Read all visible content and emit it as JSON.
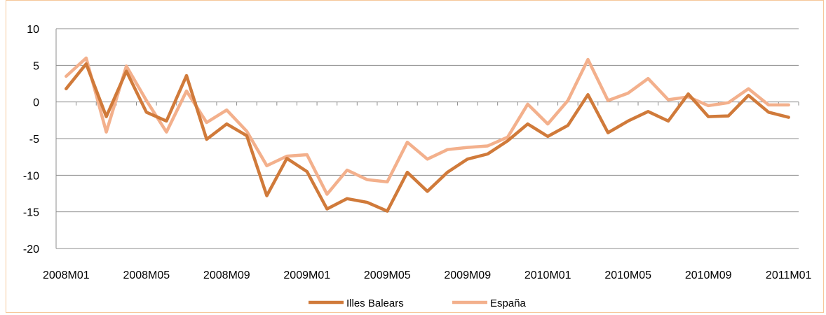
{
  "chart_data": {
    "type": "line",
    "title": "",
    "xlabel": "",
    "ylabel": "",
    "ylim": [
      -20,
      10
    ],
    "yticks": [
      10,
      5,
      0,
      -5,
      -10,
      -15,
      -20
    ],
    "x_tick_labels": [
      "2008M01",
      "2008M05",
      "2008M09",
      "2009M01",
      "2009M05",
      "2009M09",
      "2010M01",
      "2010M05",
      "2010M09",
      "2011M01"
    ],
    "x": [
      "2008M01",
      "2008M02",
      "2008M03",
      "2008M04",
      "2008M05",
      "2008M06",
      "2008M07",
      "2008M08",
      "2008M09",
      "2008M10",
      "2008M11",
      "2008M12",
      "2009M01",
      "2009M02",
      "2009M03",
      "2009M04",
      "2009M05",
      "2009M06",
      "2009M07",
      "2009M08",
      "2009M09",
      "2009M10",
      "2009M11",
      "2009M12",
      "2010M01",
      "2010M02",
      "2010M03",
      "2010M04",
      "2010M05",
      "2010M06",
      "2010M07",
      "2010M08",
      "2010M09",
      "2010M10",
      "2010M11",
      "2010M12",
      "2011M01"
    ],
    "grid": "horizontal",
    "legend_position": "bottom",
    "series": [
      {
        "name": "Illes Balears",
        "color": "#d07a3a",
        "values": [
          1.8,
          5.2,
          -2.0,
          4.2,
          -1.4,
          -2.6,
          3.6,
          -5.1,
          -3.0,
          -4.6,
          -12.8,
          -7.7,
          -9.5,
          -14.6,
          -13.2,
          -13.7,
          -14.9,
          -9.6,
          -12.2,
          -9.6,
          -7.8,
          -7.1,
          -5.3,
          -3.0,
          -4.7,
          -3.2,
          1.0,
          -4.2,
          -2.6,
          -1.3,
          -2.6,
          1.1,
          -2.0,
          -1.9,
          0.9,
          -1.4,
          -2.1
        ]
      },
      {
        "name": "España",
        "color": "#f3b08c",
        "values": [
          3.5,
          6.0,
          -4.1,
          4.9,
          0.2,
          -4.1,
          1.5,
          -2.8,
          -1.1,
          -4.0,
          -8.7,
          -7.4,
          -7.2,
          -12.6,
          -9.3,
          -10.6,
          -10.9,
          -5.5,
          -7.8,
          -6.5,
          -6.2,
          -6.0,
          -4.8,
          -0.3,
          -3.0,
          0.2,
          5.8,
          0.2,
          1.2,
          3.2,
          0.3,
          0.7,
          -0.5,
          -0.1,
          1.8,
          -0.4,
          -0.4
        ]
      }
    ]
  }
}
